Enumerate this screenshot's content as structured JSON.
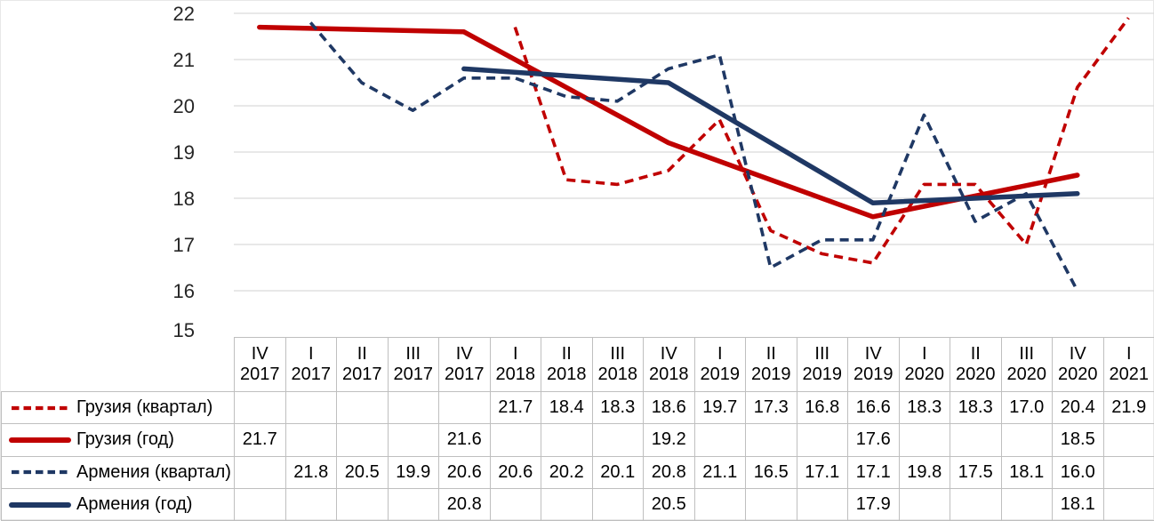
{
  "colors": {
    "georgia_red": "#C00000",
    "armenia_navy": "#1F3864",
    "gridline": "#D9D9D9",
    "table_border": "#BFBFBF",
    "axis_text": "#262626",
    "text": "#000000",
    "background": "#FFFFFF"
  },
  "chart_data": {
    "type": "line",
    "title": "",
    "xlabel": "",
    "ylabel": "",
    "ylim": [
      15,
      22
    ],
    "yticks": [
      15,
      16,
      17,
      18,
      19,
      20,
      21,
      22
    ],
    "grid": true,
    "legend_position": "table-left",
    "number_format": "one-decimal",
    "categories": [
      {
        "quarter": "IV",
        "year": "2017"
      },
      {
        "quarter": "I",
        "year": "2017"
      },
      {
        "quarter": "II",
        "year": "2017"
      },
      {
        "quarter": "III",
        "year": "2017"
      },
      {
        "quarter": "IV",
        "year": "2017"
      },
      {
        "quarter": "I",
        "year": "2018"
      },
      {
        "quarter": "II",
        "year": "2018"
      },
      {
        "quarter": "III",
        "year": "2018"
      },
      {
        "quarter": "IV",
        "year": "2018"
      },
      {
        "quarter": "I",
        "year": "2019"
      },
      {
        "quarter": "II",
        "year": "2019"
      },
      {
        "quarter": "III",
        "year": "2019"
      },
      {
        "quarter": "IV",
        "year": "2019"
      },
      {
        "quarter": "I",
        "year": "2020"
      },
      {
        "quarter": "II",
        "year": "2020"
      },
      {
        "quarter": "III",
        "year": "2020"
      },
      {
        "quarter": "IV",
        "year": "2020"
      },
      {
        "quarter": "I",
        "year": "2021"
      }
    ],
    "series": [
      {
        "id": "georgia-quarter",
        "name": "Грузия (квартал)",
        "color": "#C00000",
        "style": "dashed",
        "values": [
          null,
          null,
          null,
          null,
          null,
          21.7,
          18.4,
          18.3,
          18.6,
          19.7,
          17.3,
          16.8,
          16.6,
          18.3,
          18.3,
          17.0,
          20.4,
          21.9
        ]
      },
      {
        "id": "georgia-year",
        "name": "Грузия (год)",
        "color": "#C00000",
        "style": "solid",
        "values": [
          21.7,
          null,
          null,
          null,
          21.6,
          null,
          null,
          null,
          19.2,
          null,
          null,
          null,
          17.6,
          null,
          null,
          null,
          18.5,
          null
        ]
      },
      {
        "id": "armenia-quarter",
        "name": "Армения (квартал)",
        "color": "#1F3864",
        "style": "dashed",
        "values": [
          null,
          21.8,
          20.5,
          19.9,
          20.6,
          20.6,
          20.2,
          20.1,
          20.8,
          21.1,
          16.5,
          17.1,
          17.1,
          19.8,
          17.5,
          18.1,
          16.0,
          null
        ]
      },
      {
        "id": "armenia-year",
        "name": "Армения (год)",
        "color": "#1F3864",
        "style": "solid",
        "values": [
          null,
          null,
          null,
          null,
          20.8,
          null,
          null,
          null,
          20.5,
          null,
          null,
          null,
          17.9,
          null,
          null,
          null,
          18.1,
          null
        ]
      }
    ]
  }
}
